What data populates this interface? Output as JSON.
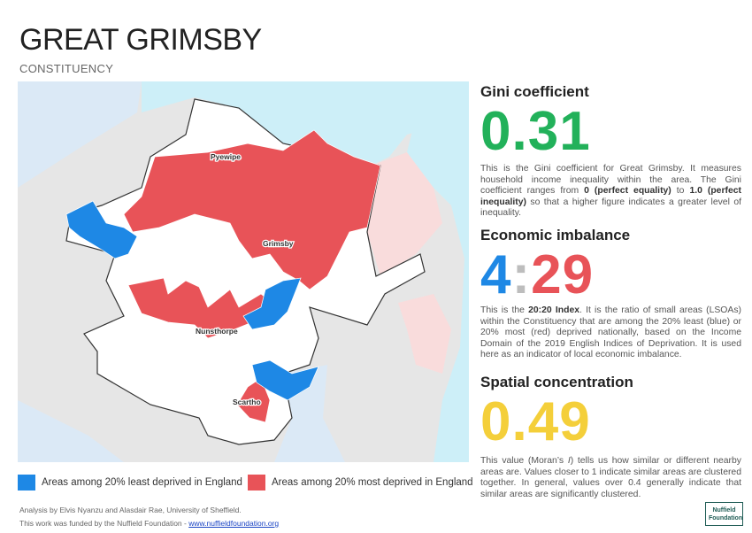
{
  "header": {
    "title": "GREAT GRIMSBY",
    "subtitle": "CONSTITUENCY"
  },
  "map": {
    "places": [
      "Pyewipe",
      "Grimsby",
      "Nunsthorpe",
      "Scartho"
    ],
    "colors": {
      "least_deprived": "#1e88e5",
      "most_deprived": "#e85358",
      "sea": "#cdeff8",
      "neighbour_blue": "#dbe9f6",
      "neighbour_red": "#f9dcdc"
    }
  },
  "legend": {
    "least": "Areas among 20% least deprived in England",
    "most": "Areas among 20% most deprived in England"
  },
  "gini": {
    "heading": "Gini coefficient",
    "value": "0.31",
    "color": "#22b15a",
    "desc_intro": "This is the Gini coefficient for Great Grimsby. It measures household income inequality within the area. The Gini coefficient ranges from ",
    "desc_b1": "0 (perfect equality)",
    "desc_mid": " to ",
    "desc_b2": "1.0 (perfect inequality)",
    "desc_end": " so that a higher figure indicates a greater level of inequality."
  },
  "imbalance": {
    "heading": "Economic imbalance",
    "left": "4",
    "sep": ":",
    "right": "29",
    "left_color": "#1e88e5",
    "sep_color": "#bdbdbd",
    "right_color": "#e85358",
    "desc_intro": "This is the ",
    "desc_b": "20:20 Index",
    "desc_rest": ". It is the ratio of small areas (LSOAs) within the Constituency that are among the 20% least (blue) or 20% most (red) deprived nationally, based on the Income Domain of the 2019 English Indices of Deprivation. It is used here as an indicator of local economic imbalance."
  },
  "spatial": {
    "heading": "Spatial concentration",
    "value": "0.49",
    "color": "#f4cf3a",
    "desc_intro": "This value (Moran’s ",
    "desc_i": "I",
    "desc_rest": ") tells us how similar or different nearby areas are. Values closer to 1 indicate similar areas are clustered together. In general, values over 0.4 generally indicate that similar areas are significantly clustered."
  },
  "footer": {
    "line1": "Analysis by Elvis Nyanzu and Alasdair Rae, University of Sheffield.",
    "line2_text": "This work was funded by the Nuffield Foundation - ",
    "line2_link": "www.nuffieldfoundation.org",
    "logo_line1": "Nuffield",
    "logo_line2": "Foundation"
  }
}
